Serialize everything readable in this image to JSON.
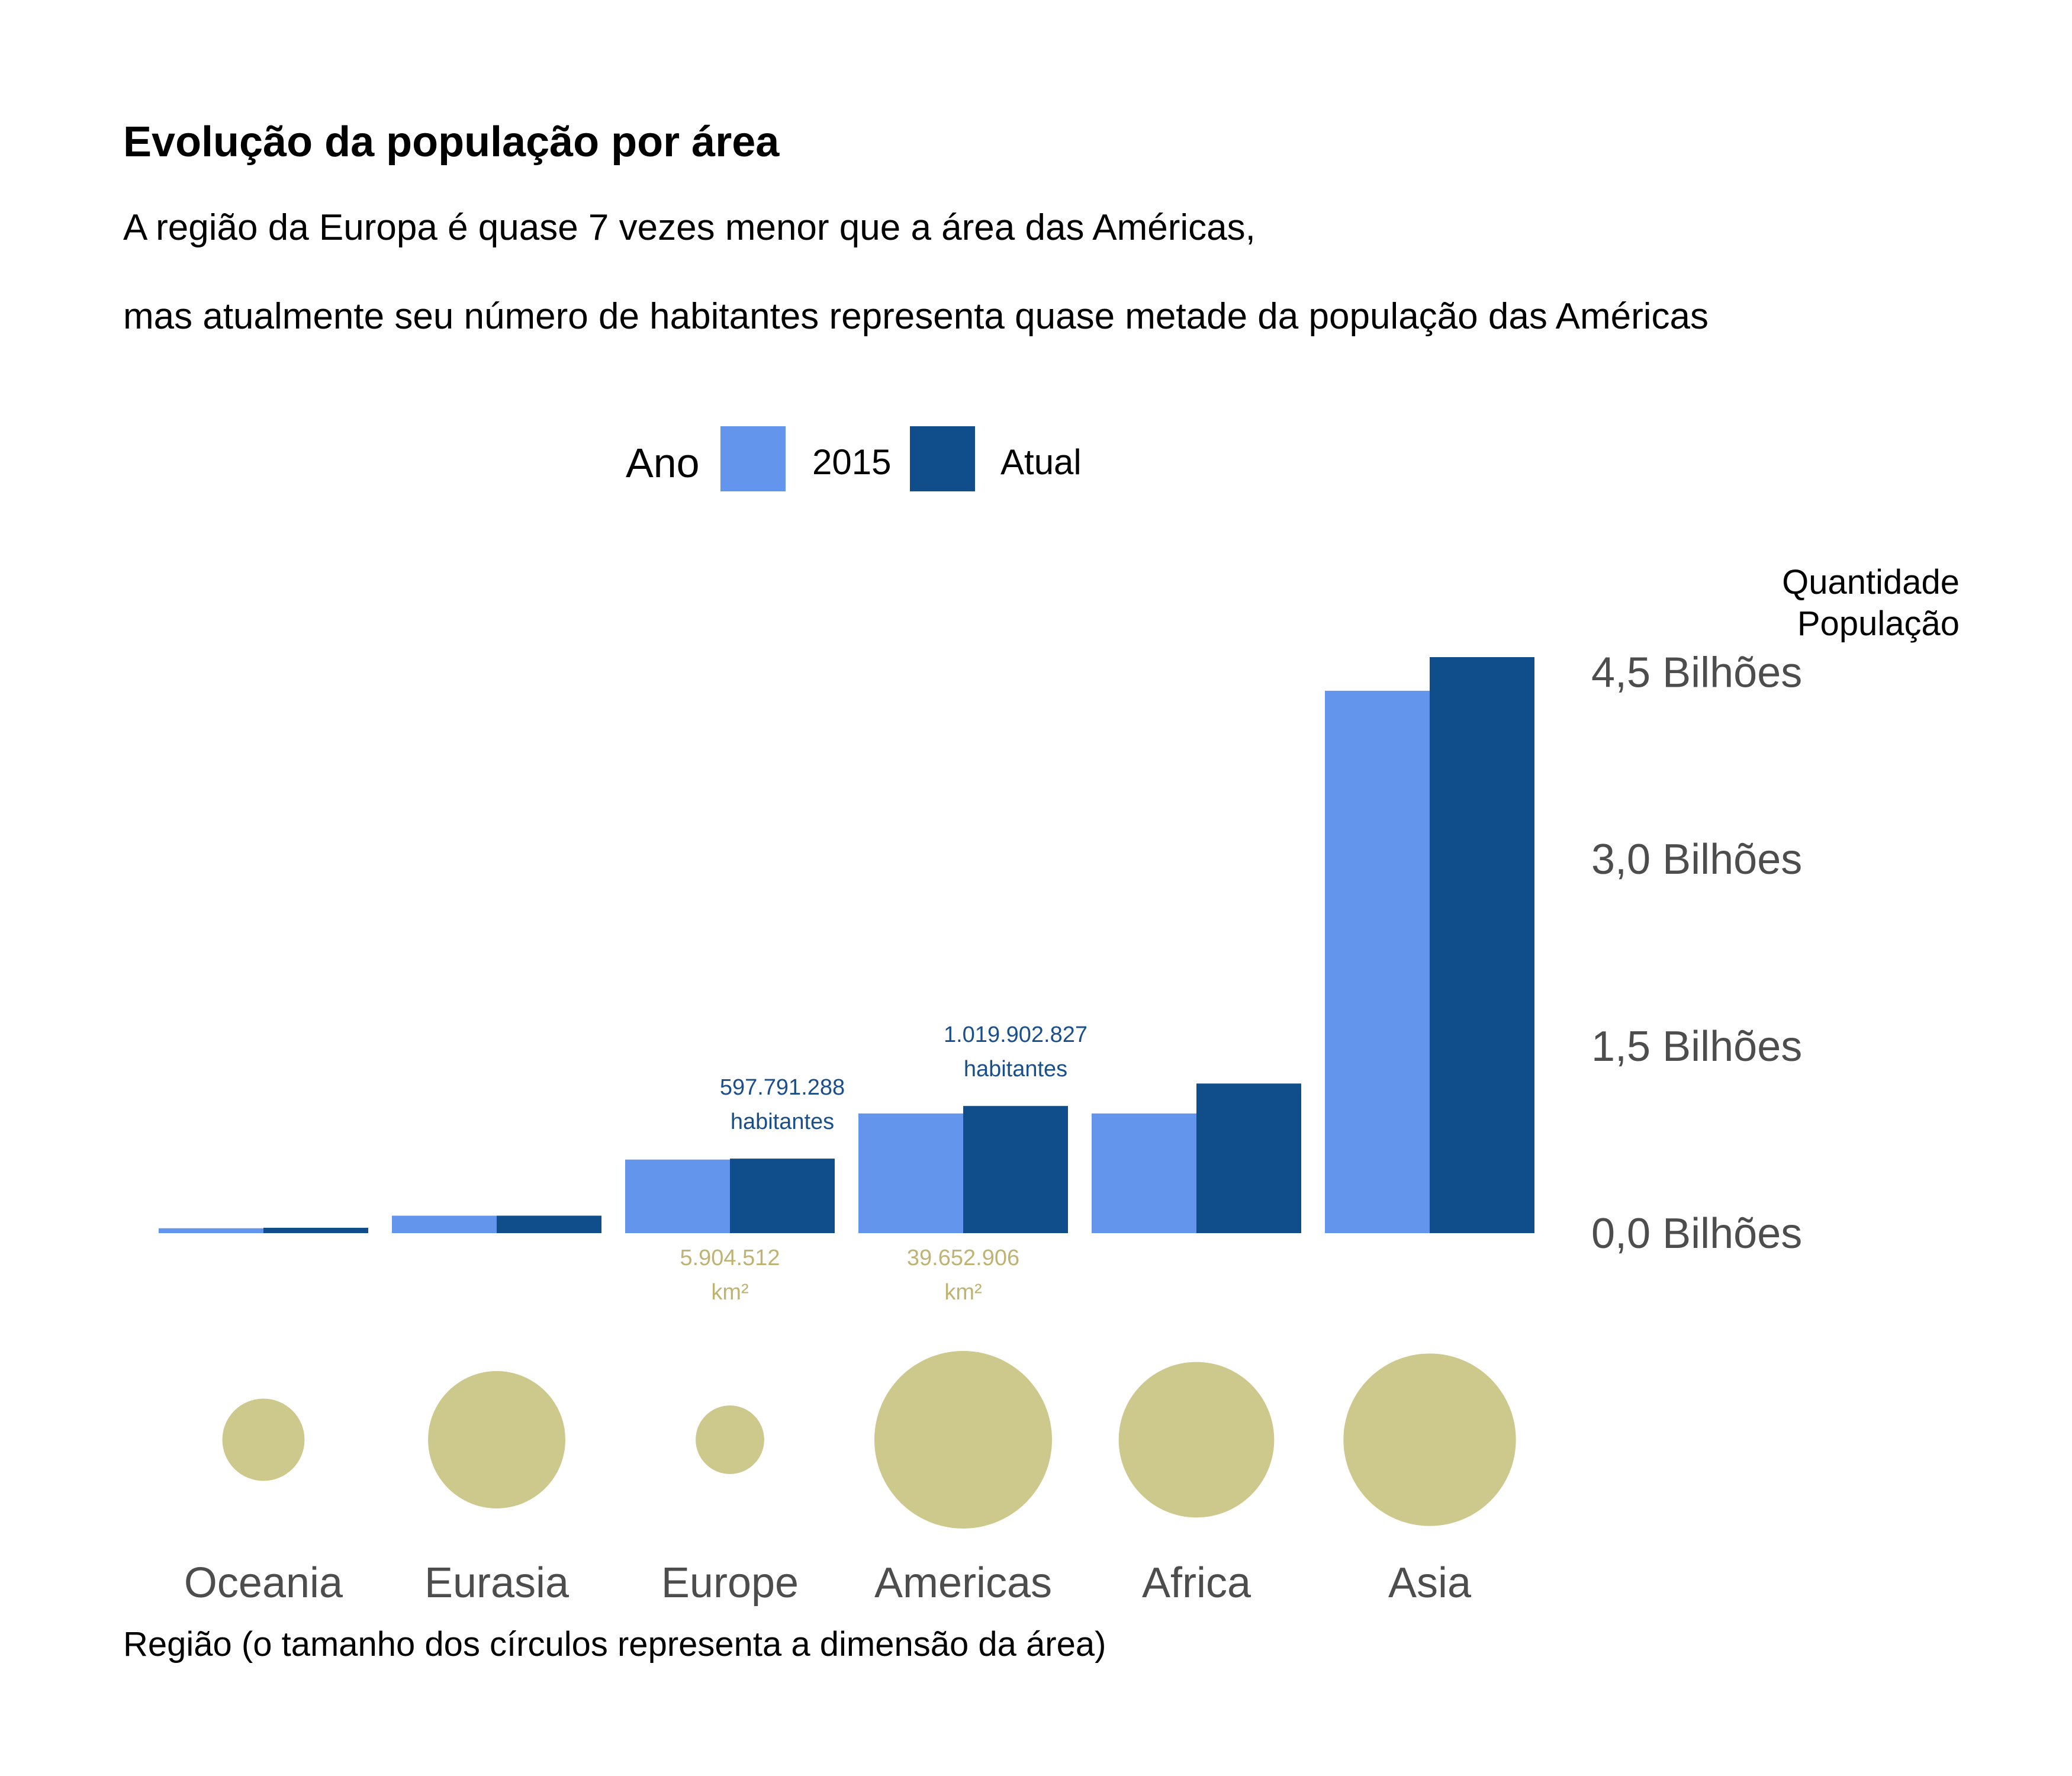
{
  "title": "Evolução da população por área",
  "subtitle_lines": [
    "A região da Europa é quase 7 vezes menor que a área das Américas,",
    "mas atualmente seu número de habitantes representa quase metade da população das Américas"
  ],
  "legend": {
    "title": "Ano",
    "items": [
      {
        "label": "2015",
        "color": "#6495ed"
      },
      {
        "label": "Atual",
        "color": "#104e8b"
      }
    ]
  },
  "y_axis": {
    "label_lines": [
      "Quantidade",
      "População"
    ],
    "ticks": [
      {
        "value": 0,
        "label": "0,0 Bilhões"
      },
      {
        "value": 1.5,
        "label": "1,5 Bilhões"
      },
      {
        "value": 3.0,
        "label": "3,0 Bilhões"
      },
      {
        "value": 4.5,
        "label": "4,5 Bilhões"
      }
    ]
  },
  "x_axis": {
    "label": "Região (o tamanho dos círculos representa a dimensão da área)"
  },
  "colors": {
    "circle": "#c8c27f",
    "pop_annotation": "#1a4f8b",
    "area_annotation": "#bfb373"
  },
  "annotations": {
    "population": [
      {
        "region": "Europe",
        "lines": [
          "597.791.288",
          "habitantes"
        ]
      },
      {
        "region": "Americas",
        "lines": [
          "1.019.902.827",
          "habitantes"
        ]
      }
    ],
    "area": [
      {
        "region": "Europe",
        "lines": [
          "5.904.512",
          "km²"
        ]
      },
      {
        "region": "Americas",
        "lines": [
          "39.652.906",
          "km²"
        ]
      }
    ]
  },
  "chart_data": {
    "type": "bar",
    "categories": [
      "Oceania",
      "Eurasia",
      "Europe",
      "Americas",
      "Africa",
      "Asia"
    ],
    "series": [
      {
        "name": "2015",
        "values": [
          0.039,
          0.14,
          0.59,
          0.96,
          0.96,
          4.35
        ]
      },
      {
        "name": "Atual",
        "values": [
          0.043,
          0.14,
          0.597791288,
          1.019902827,
          1.2,
          4.62
        ]
      }
    ],
    "y_unit": "Bilhões",
    "ylim": [
      0,
      4.62
    ],
    "area_km2": [
      8500000,
      23700000,
      5904512,
      39652906,
      30400000,
      37400000
    ],
    "xlabel": "Região (o tamanho dos círculos representa a dimensão da área)",
    "ylabel": "Quantidade População",
    "grid": false,
    "legend_position": "top"
  }
}
